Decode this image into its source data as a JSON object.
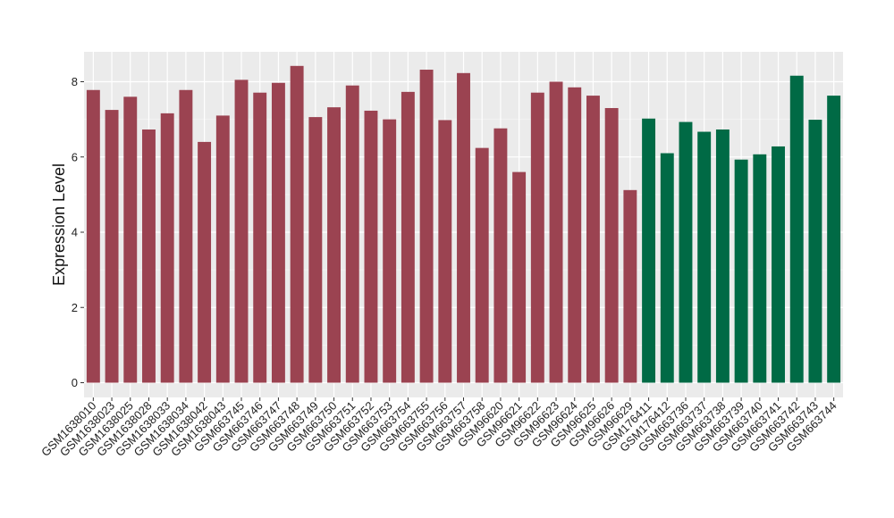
{
  "chart_data": {
    "type": "bar",
    "title": "",
    "xlabel": "",
    "ylabel": "Expression Level",
    "ylim": [
      0,
      8.75
    ],
    "yticks": [
      0,
      2,
      4,
      6,
      8
    ],
    "grid": true,
    "legend": "none",
    "panel_color": "#ebebeb",
    "categories": [
      "GSM1638010",
      "GSM1638023",
      "GSM1638025",
      "GSM1638028",
      "GSM1638033",
      "GSM1638034",
      "GSM1638042",
      "GSM1638043",
      "GSM663745",
      "GSM663746",
      "GSM663747",
      "GSM663748",
      "GSM663749",
      "GSM663750",
      "GSM663751",
      "GSM663752",
      "GSM663753",
      "GSM663754",
      "GSM663755",
      "GSM663756",
      "GSM663757",
      "GSM663758",
      "GSM96620",
      "GSM96621",
      "GSM96622",
      "GSM96623",
      "GSM96624",
      "GSM96625",
      "GSM96626",
      "GSM96629",
      "GSM176411",
      "GSM176412",
      "GSM663736",
      "GSM663737",
      "GSM663738",
      "GSM663739",
      "GSM663740",
      "GSM663741",
      "GSM663742",
      "GSM663743",
      "GSM663744"
    ],
    "values": [
      7.78,
      7.25,
      7.6,
      6.73,
      7.16,
      7.78,
      6.4,
      7.1,
      8.05,
      7.71,
      7.97,
      8.42,
      7.06,
      7.32,
      7.9,
      7.23,
      7.0,
      7.73,
      8.32,
      6.98,
      8.23,
      6.24,
      6.76,
      5.6,
      7.71,
      8.0,
      7.85,
      7.63,
      7.3,
      5.12,
      7.02,
      6.1,
      6.93,
      6.67,
      6.73,
      5.93,
      6.07,
      6.28,
      8.16,
      6.99,
      7.63
    ],
    "groups": [
      "red",
      "red",
      "red",
      "red",
      "red",
      "red",
      "red",
      "red",
      "red",
      "red",
      "red",
      "red",
      "red",
      "red",
      "red",
      "red",
      "red",
      "red",
      "red",
      "red",
      "red",
      "red",
      "red",
      "red",
      "red",
      "red",
      "red",
      "red",
      "red",
      "red",
      "green",
      "green",
      "green",
      "green",
      "green",
      "green",
      "green",
      "green",
      "green",
      "green",
      "green"
    ],
    "colors": {
      "red": "#9b4351",
      "green": "#006a45"
    }
  }
}
